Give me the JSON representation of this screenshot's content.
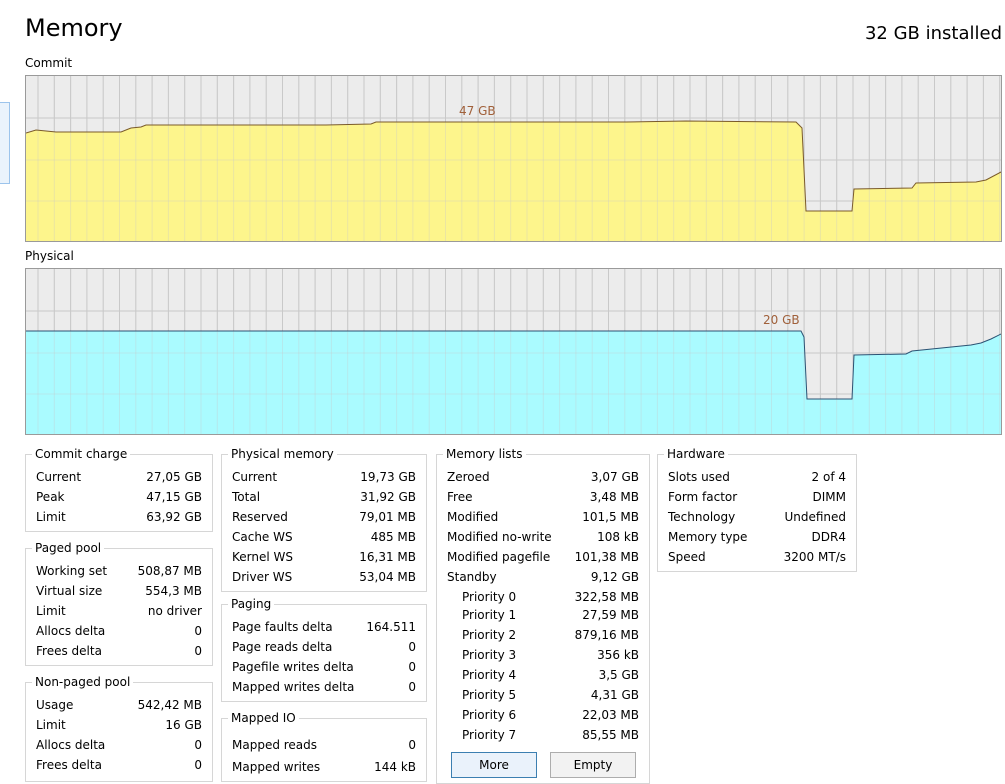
{
  "header": {
    "title": "Memory",
    "installed": "32 GB installed"
  },
  "graphs": {
    "commit": {
      "label": "Commit",
      "annotation": "47 GB",
      "fill": "#fdf58c",
      "line": "#7a5a2a"
    },
    "physical": {
      "label": "Physical",
      "annotation": "20 GB",
      "fill": "#aafbff",
      "line": "#2b5273"
    }
  },
  "commit_charge": {
    "title": "Commit charge",
    "rows": [
      {
        "k": "Current",
        "v": "27,05 GB"
      },
      {
        "k": "Peak",
        "v": "47,15 GB"
      },
      {
        "k": "Limit",
        "v": "63,92 GB"
      }
    ]
  },
  "paged_pool": {
    "title": "Paged pool",
    "rows": [
      {
        "k": "Working set",
        "v": "508,87 MB"
      },
      {
        "k": "Virtual size",
        "v": "554,3 MB"
      },
      {
        "k": "Limit",
        "v": "no driver"
      },
      {
        "k": "Allocs delta",
        "v": "0"
      },
      {
        "k": "Frees delta",
        "v": "0"
      }
    ]
  },
  "nonpaged_pool": {
    "title": "Non-paged pool",
    "rows": [
      {
        "k": "Usage",
        "v": "542,42 MB"
      },
      {
        "k": "Limit",
        "v": "16 GB"
      },
      {
        "k": "Allocs delta",
        "v": "0"
      },
      {
        "k": "Frees delta",
        "v": "0"
      }
    ]
  },
  "physical_memory": {
    "title": "Physical memory",
    "rows": [
      {
        "k": "Current",
        "v": "19,73 GB"
      },
      {
        "k": "Total",
        "v": "31,92 GB"
      },
      {
        "k": "Reserved",
        "v": "79,01 MB"
      },
      {
        "k": "Cache WS",
        "v": "485 MB"
      },
      {
        "k": "Kernel WS",
        "v": "16,31 MB"
      },
      {
        "k": "Driver WS",
        "v": "53,04 MB"
      }
    ]
  },
  "paging": {
    "title": "Paging",
    "rows": [
      {
        "k": "Page faults delta",
        "v": "164.511"
      },
      {
        "k": "Page reads delta",
        "v": "0"
      },
      {
        "k": "Pagefile writes delta",
        "v": "0"
      },
      {
        "k": "Mapped writes delta",
        "v": "0"
      }
    ]
  },
  "mapped_io": {
    "title": "Mapped IO",
    "rows": [
      {
        "k": "Mapped reads",
        "v": "0"
      },
      {
        "k": "Mapped writes",
        "v": "144 kB"
      }
    ]
  },
  "memory_lists": {
    "title": "Memory lists",
    "rows": [
      {
        "k": "Zeroed",
        "v": "3,07 GB"
      },
      {
        "k": "Free",
        "v": "3,48 MB"
      },
      {
        "k": "Modified",
        "v": "101,5 MB"
      },
      {
        "k": "Modified no-write",
        "v": "108 kB"
      },
      {
        "k": "Modified pagefile",
        "v": "101,38 MB"
      },
      {
        "k": "Standby",
        "v": "9,12 GB"
      }
    ],
    "priorities": [
      {
        "k": "Priority 0",
        "v": "322,58 MB"
      },
      {
        "k": "Priority 1",
        "v": "27,59 MB"
      },
      {
        "k": "Priority 2",
        "v": "879,16 MB"
      },
      {
        "k": "Priority 3",
        "v": "356 kB"
      },
      {
        "k": "Priority 4",
        "v": "3,5 GB"
      },
      {
        "k": "Priority 5",
        "v": "4,31 GB"
      },
      {
        "k": "Priority 6",
        "v": "22,03 MB"
      },
      {
        "k": "Priority 7",
        "v": "85,55 MB"
      }
    ],
    "buttons": {
      "more": "More",
      "empty": "Empty"
    }
  },
  "hardware": {
    "title": "Hardware",
    "rows": [
      {
        "k": "Slots used",
        "v": "2 of 4"
      },
      {
        "k": "Form factor",
        "v": "DIMM"
      },
      {
        "k": "Technology",
        "v": "Undefined"
      },
      {
        "k": "Memory type",
        "v": "DDR4"
      },
      {
        "k": "Speed",
        "v": "3200 MT/s"
      }
    ]
  }
}
